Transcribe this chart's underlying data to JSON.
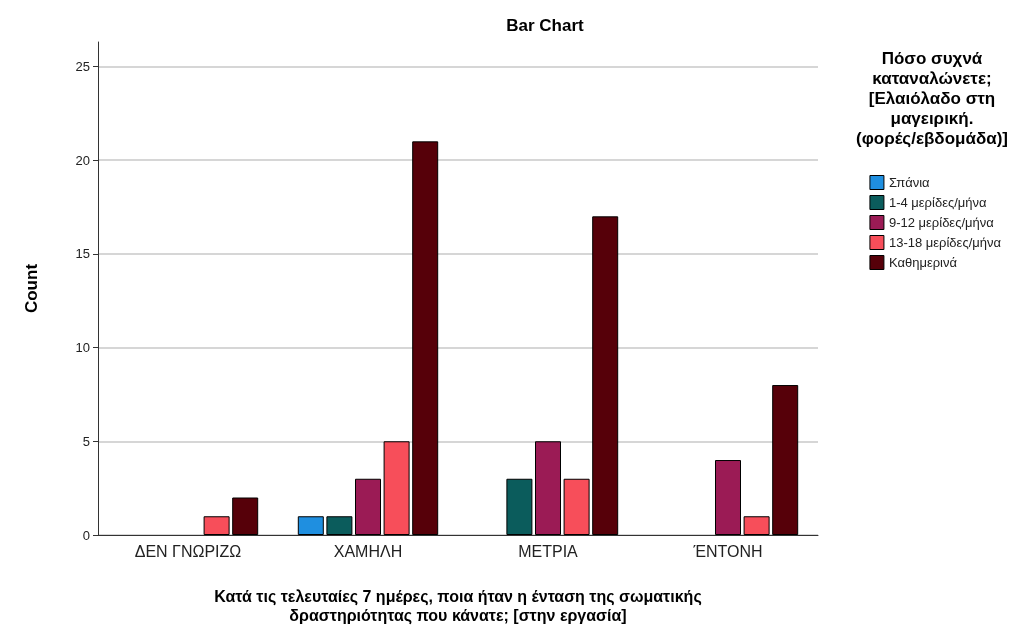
{
  "chart_data": {
    "type": "bar",
    "title": "Bar Chart",
    "xlabel": "Κατά τις τελευταίες 7 ημέρες, ποια ήταν η ένταση της σωματικής\nδραστηριότητας που κάνατε; [στην εργασία]",
    "ylabel": "Count",
    "legend_title": "Πόσο συχνά\nκαταναλώνετε;\n[Ελαιόλαδο στη\nμαγειρική.\n(φορές/εβδομάδα)]",
    "categories": [
      "ΔΕΝ ΓΝΩΡΙΖΩ",
      "ΧΑΜΗΛΗ",
      "ΜΕΤΡΙΑ",
      "ΈΝΤΟΝΗ"
    ],
    "series": [
      {
        "name": "Σπάνια",
        "color": "#1f8fe0",
        "values": [
          null,
          1,
          null,
          null
        ]
      },
      {
        "name": "1-4 μερίδες/μήνα",
        "color": "#0b5c5c",
        "values": [
          null,
          1,
          3,
          null
        ]
      },
      {
        "name": "9-12 μερίδες/μήνα",
        "color": "#9b1b55",
        "values": [
          null,
          3,
          5,
          4
        ]
      },
      {
        "name": "13-18 μερίδες/μήνα",
        "color": "#f74e5a",
        "values": [
          1,
          5,
          3,
          1
        ]
      },
      {
        "name": "Καθημερινά",
        "color": "#560009",
        "values": [
          2,
          21,
          17,
          8
        ]
      }
    ],
    "ylim": [
      0,
      26.3
    ],
    "yticks": [
      0,
      5,
      10,
      15,
      20,
      25
    ],
    "grid": "y",
    "legend": "right"
  }
}
